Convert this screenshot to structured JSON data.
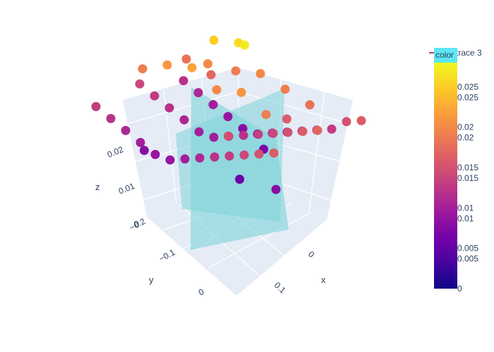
{
  "chart_data": {
    "type": "scatter3d",
    "axes": {
      "x": {
        "label": "x",
        "ticks": [
          "0",
          "0.1"
        ]
      },
      "y": {
        "label": "y",
        "ticks": [
          "−0.2",
          "−0.1",
          "0"
        ]
      },
      "z": {
        "label": "z",
        "ticks": [
          "0",
          "0.01",
          "0.02"
        ]
      }
    },
    "colorbar": {
      "title": "color",
      "range": [
        0,
        0.028
      ],
      "ticks": [
        "0",
        "0.005",
        "0.01",
        "0.015",
        "0.02",
        "0.025"
      ],
      "ticks_secondary": [
        "0.005",
        "0.01",
        "0.015",
        "0.02",
        "0.025"
      ],
      "colorscale": [
        "#0d0887",
        "#46039f",
        "#7201a8",
        "#9c179e",
        "#bd3786",
        "#d8576b",
        "#ed7953",
        "#fb9f3a",
        "#fdca26",
        "#f0f921"
      ]
    },
    "planes": {
      "color": "#7fd3d8",
      "count": 2
    },
    "legend": {
      "entries": [
        "trace 3"
      ],
      "placement": "top-right"
    },
    "points": [
      [
        -0.2,
        -0.2,
        0.012
      ],
      [
        -0.17,
        -0.2,
        0.011
      ],
      [
        -0.14,
        -0.2,
        0.01
      ],
      [
        -0.11,
        -0.2,
        0.009
      ],
      [
        -0.08,
        -0.2,
        0.008
      ],
      [
        -0.05,
        -0.2,
        0.008
      ],
      [
        -0.02,
        -0.2,
        0.009
      ],
      [
        0.01,
        -0.2,
        0.01
      ],
      [
        0.04,
        -0.2,
        0.011
      ],
      [
        0.07,
        -0.2,
        0.012
      ],
      [
        0.1,
        -0.2,
        0.013
      ],
      [
        0.13,
        -0.2,
        0.015
      ],
      [
        0.16,
        -0.2,
        0.016
      ],
      [
        -0.2,
        -0.1,
        0.014
      ],
      [
        -0.17,
        -0.1,
        0.013
      ],
      [
        -0.14,
        -0.1,
        0.012
      ],
      [
        -0.11,
        -0.1,
        0.011
      ],
      [
        -0.08,
        -0.1,
        0.01
      ],
      [
        -0.05,
        -0.1,
        0.01
      ],
      [
        -0.02,
        -0.1,
        0.011
      ],
      [
        0.01,
        -0.1,
        0.012
      ],
      [
        0.04,
        -0.1,
        0.013
      ],
      [
        0.07,
        -0.1,
        0.014
      ],
      [
        0.1,
        -0.1,
        0.015
      ],
      [
        0.13,
        -0.1,
        0.016
      ],
      [
        0.16,
        -0.1,
        0.017
      ],
      [
        -0.2,
        0.0,
        0.013
      ],
      [
        -0.17,
        0.0,
        0.012
      ],
      [
        -0.14,
        0.0,
        0.011
      ],
      [
        -0.11,
        0.0,
        0.01
      ],
      [
        -0.08,
        0.0,
        0.009
      ],
      [
        -0.05,
        0.0,
        0.009
      ],
      [
        -0.02,
        0.0,
        0.01
      ],
      [
        0.01,
        0.0,
        0.011
      ],
      [
        0.04,
        0.0,
        0.012
      ],
      [
        0.07,
        0.0,
        0.013
      ],
      [
        0.1,
        0.0,
        0.014
      ],
      [
        0.13,
        0.0,
        0.015
      ],
      [
        0.16,
        0.0,
        0.016
      ],
      [
        -0.15,
        -0.15,
        0.018
      ],
      [
        -0.1,
        -0.15,
        0.017
      ],
      [
        -0.05,
        -0.15,
        0.019
      ],
      [
        0.0,
        -0.15,
        0.02
      ],
      [
        0.05,
        -0.15,
        0.019
      ],
      [
        0.1,
        -0.15,
        0.018
      ],
      [
        -0.15,
        -0.05,
        0.019
      ],
      [
        -0.1,
        -0.05,
        0.021
      ],
      [
        -0.05,
        -0.05,
        0.022
      ],
      [
        0.0,
        -0.05,
        0.02
      ],
      [
        0.05,
        -0.05,
        0.021
      ],
      [
        0.1,
        -0.05,
        0.019
      ],
      [
        -0.05,
        -0.1,
        0.025
      ],
      [
        0.0,
        -0.1,
        0.026
      ],
      [
        0.03,
        -0.08,
        0.027
      ],
      [
        -0.08,
        -0.12,
        0.02
      ],
      [
        0.05,
        -0.02,
        0.015
      ],
      [
        0.08,
        -0.12,
        0.016
      ],
      [
        -0.12,
        -0.02,
        0.008
      ],
      [
        -0.02,
        -0.18,
        0.007
      ],
      [
        0.02,
        -0.08,
        0.006
      ],
      [
        0.12,
        -0.05,
        0.008
      ]
    ]
  }
}
